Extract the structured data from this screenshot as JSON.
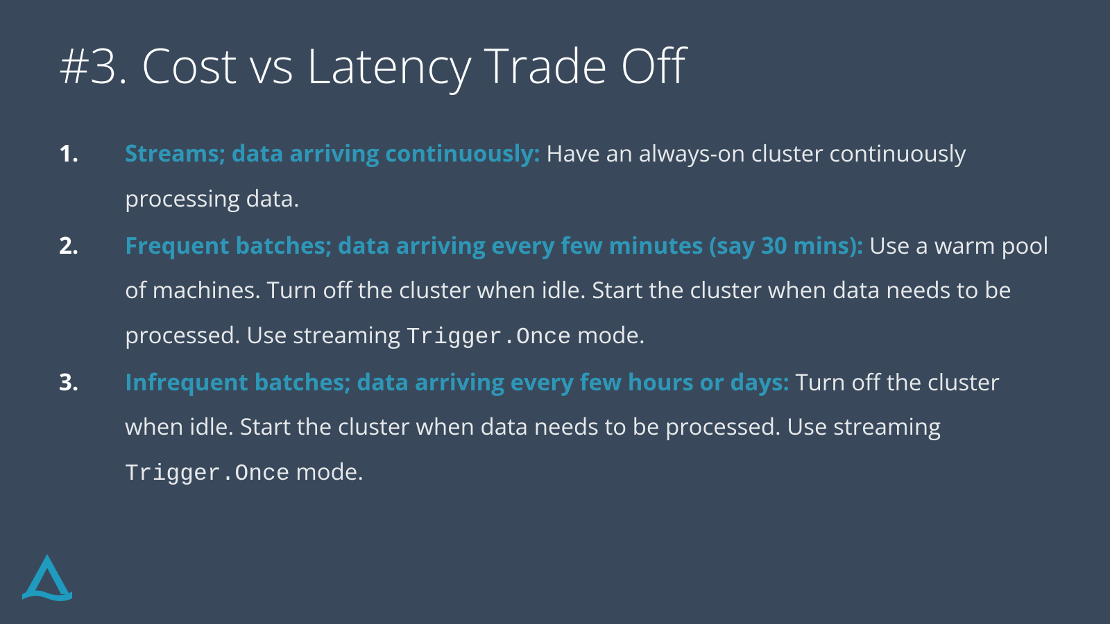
{
  "colors": {
    "background": "#39495b",
    "title": "#ffffff",
    "body": "#e7e9eb",
    "accent": "#2e97b7",
    "number": "#ffffff",
    "logo": "#1f9bbf"
  },
  "typography": {
    "title_fontsize": 69,
    "body_fontsize": 33,
    "number_fontsize": 33
  },
  "title": "#3. Cost vs Latency Trade Off",
  "items": [
    {
      "lead": "Streams; data arriving continuously:",
      "body_a": " Have an always-on cluster continuously processing data.",
      "code": "",
      "body_b": ""
    },
    {
      "lead": "Frequent batches; data arriving every few minutes (say 30 mins):",
      "body_a": " Use a warm pool of machines. Turn off the cluster when idle. Start the cluster when data needs to be processed. Use streaming ",
      "code": "Trigger.Once",
      "body_b": "  mode."
    },
    {
      "lead": "Infrequent batches; data arriving every few hours or days:",
      "body_a": " Turn off the cluster when idle. Start the cluster when data needs to be processed. Use streaming ",
      "code": "Trigger.Once",
      "body_b": "  mode."
    }
  ]
}
